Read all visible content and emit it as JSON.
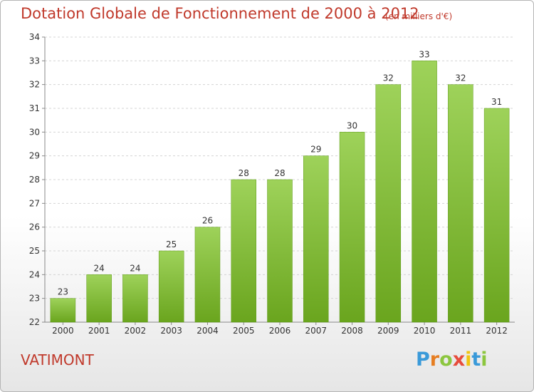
{
  "header": {
    "title": "Dotation Globale de Fonctionnement de 2000 à 2012",
    "unit_note": "(en milliers d'€)"
  },
  "footer": {
    "commune": "VATIMONT",
    "brand": [
      "P",
      "r",
      "o",
      "x",
      "i",
      "t",
      "i"
    ],
    "brand_colors": [
      "#3a9ad9",
      "#e67e22",
      "#8cc63f",
      "#e74c3c",
      "#f1c40f",
      "#3a9ad9",
      "#8cc63f"
    ]
  },
  "chart_data": {
    "type": "bar",
    "categories": [
      "2000",
      "2001",
      "2002",
      "2003",
      "2004",
      "2005",
      "2006",
      "2007",
      "2008",
      "2009",
      "2010",
      "2011",
      "2012"
    ],
    "values": [
      23,
      24,
      24,
      25,
      26,
      28,
      28,
      29,
      30,
      32,
      33,
      32,
      31
    ],
    "data_labels": [
      "23",
      "24",
      "24",
      "25",
      "26",
      "28",
      "28",
      "29",
      "30",
      "32",
      "33",
      "32",
      "31"
    ],
    "ylim": [
      22,
      34
    ],
    "yticks": [
      "22",
      "23",
      "24",
      "25",
      "26",
      "27",
      "28",
      "29",
      "30",
      "31",
      "32",
      "33",
      "34"
    ],
    "grid": "horizontal dashed",
    "bar_colors": {
      "top": "#9ed25a",
      "bottom": "#6aa51e"
    }
  }
}
